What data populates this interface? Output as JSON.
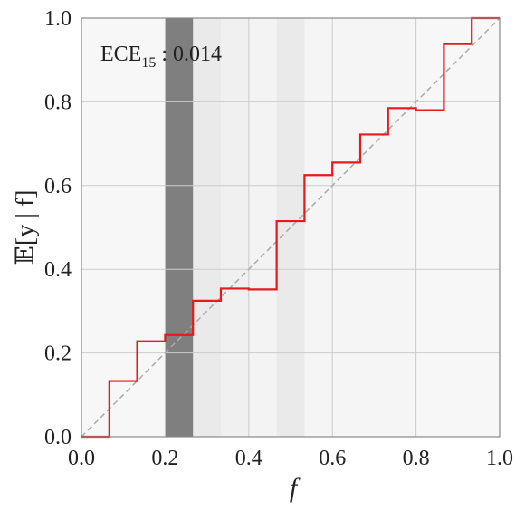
{
  "chart_data": {
    "type": "bar",
    "title": "",
    "xlabel": "f",
    "ylabel": "𝔼[y | f]",
    "xlim": [
      0.0,
      1.0
    ],
    "ylim": [
      0.0,
      1.0
    ],
    "grid": true,
    "x_ticks": [
      "0.0",
      "0.2",
      "0.4",
      "0.6",
      "0.8",
      "1.0"
    ],
    "y_ticks": [
      "0.0",
      "0.2",
      "0.4",
      "0.6",
      "0.8",
      "1.0"
    ],
    "annotation": {
      "prefix": "ECE",
      "subscript": "15",
      "value_text": " : 0.014"
    },
    "num_bins": 15,
    "bin_edges": [
      0.0,
      0.0667,
      0.1333,
      0.2,
      0.2667,
      0.3333,
      0.4,
      0.4667,
      0.5333,
      0.6,
      0.6667,
      0.7333,
      0.8,
      0.8667,
      0.9333,
      1.0
    ],
    "series": [
      {
        "name": "",
        "kind": "step",
        "color": "#e41a1c",
        "values": [
          0.0,
          0.133,
          0.228,
          0.243,
          0.325,
          0.354,
          0.352,
          0.515,
          0.625,
          0.655,
          0.722,
          0.785,
          0.78,
          0.938,
          1.0
        ]
      }
    ],
    "bin_density": [
      0.05,
      0.05,
      0.05,
      1.0,
      0.15,
      0.1,
      0.08,
      0.15,
      0.06,
      0.06,
      0.06,
      0.06,
      0.05,
      0.05,
      0.05
    ],
    "reference_line": {
      "from": [
        0.0,
        0.0
      ],
      "to": [
        1.0,
        1.0
      ],
      "style": "dashed",
      "color": "#aaaaaa"
    },
    "colors": {
      "step": "#e41a1c",
      "grid": "#cccccc",
      "frame": "#888888",
      "density_dark": "#7f7f7f"
    }
  }
}
